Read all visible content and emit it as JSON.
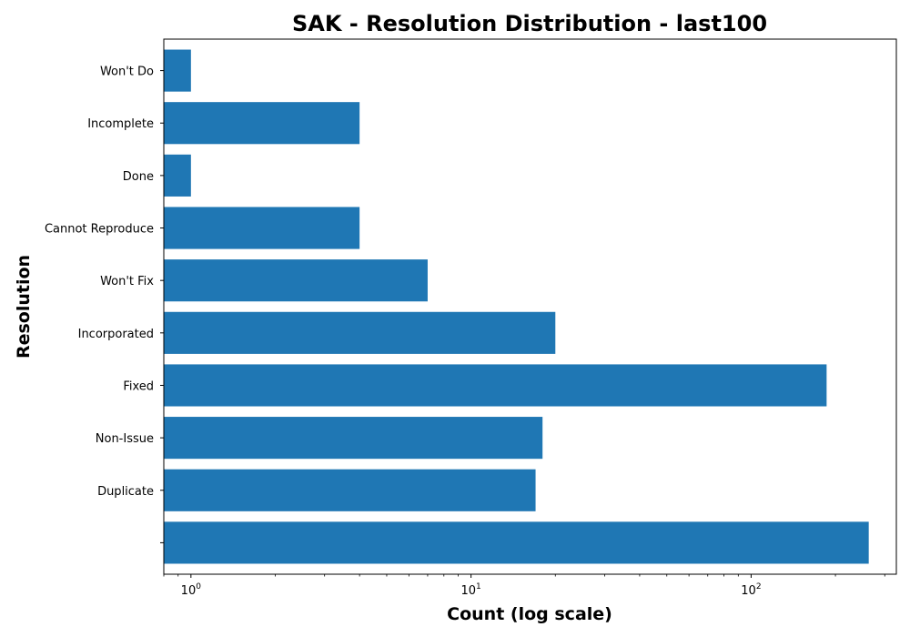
{
  "chart_data": {
    "type": "bar",
    "orientation": "horizontal",
    "title": "SAK - Resolution Distribution - last100",
    "xlabel": "Count (log scale)",
    "ylabel": "Resolution",
    "x_scale": "log",
    "xlim": [
      0.8,
      330
    ],
    "grid": false,
    "bar_color": "#1f77b4",
    "categories": [
      "",
      "Duplicate",
      "Non-Issue",
      "Fixed",
      "Incorporated",
      "Won't Fix",
      "Cannot Reproduce",
      "Done",
      "Incomplete",
      "Won't Do"
    ],
    "values": [
      263,
      17,
      18,
      186,
      20,
      7,
      4,
      1,
      4,
      1
    ],
    "x_ticks": [
      {
        "value": 1,
        "base": "10",
        "exp": "0"
      },
      {
        "value": 10,
        "base": "10",
        "exp": "1"
      },
      {
        "value": 100,
        "base": "10",
        "exp": "2"
      }
    ]
  }
}
